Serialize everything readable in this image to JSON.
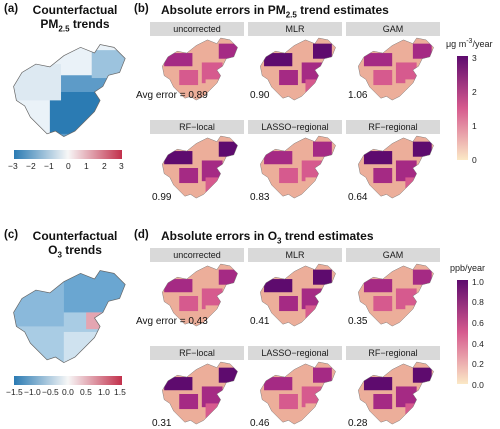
{
  "figure": {
    "pm25": {
      "counterfactual": {
        "label": "(a)",
        "title_line1": "Counterfactual",
        "title_line2_prefix": "PM",
        "title_line2_sub": "2.5",
        "title_line2_suffix": " trends",
        "colorbar_ticks": [
          "−3",
          "−2",
          "−1",
          "0",
          "1",
          "2",
          "3"
        ],
        "colorbar_range": [
          -3,
          3
        ]
      },
      "errors": {
        "label": "(b)",
        "title_prefix": "Absolute errors in PM",
        "title_sub": "2.5",
        "title_suffix": " trend estimates",
        "unit_prefix": "μg m",
        "unit_sup": "-3",
        "unit_suffix": "/year",
        "colorbar_ticks": [
          "3",
          "2",
          "1",
          "0"
        ],
        "colorbar_range": [
          0,
          3
        ],
        "avg_error_prefix": "Avg error = ",
        "methods": [
          {
            "name": "uncorrected",
            "avg_error": "0.89"
          },
          {
            "name": "MLR",
            "avg_error": "0.90"
          },
          {
            "name": "GAM",
            "avg_error": "1.06"
          },
          {
            "name": "RF−local",
            "avg_error": "0.99"
          },
          {
            "name": "LASSO−regional",
            "avg_error": "0.83"
          },
          {
            "name": "RF−regional",
            "avg_error": "0.64"
          }
        ]
      }
    },
    "o3": {
      "counterfactual": {
        "label": "(c)",
        "title_line1": "Counterfactual",
        "title_line2_prefix": "O",
        "title_line2_sub": "3",
        "title_line2_suffix": " trends",
        "colorbar_ticks": [
          "−1.5",
          "−1.0",
          "−0.5",
          "0.0",
          "0.5",
          "1.0",
          "1.5"
        ],
        "colorbar_range": [
          -1.5,
          1.5
        ]
      },
      "errors": {
        "label": "(d)",
        "title_prefix": "Absolute errors in O",
        "title_sub": "3",
        "title_suffix": " trend estimates",
        "unit": "ppb/year",
        "colorbar_ticks": [
          "1.0",
          "0.8",
          "0.6",
          "0.4",
          "0.2",
          "0.0"
        ],
        "colorbar_range": [
          0,
          1
        ],
        "avg_error_prefix": "Avg error = ",
        "methods": [
          {
            "name": "uncorrected",
            "avg_error": "0.43"
          },
          {
            "name": "MLR",
            "avg_error": "0.41"
          },
          {
            "name": "GAM",
            "avg_error": "0.35"
          },
          {
            "name": "RF−local",
            "avg_error": "0.31"
          },
          {
            "name": "LASSO−regional",
            "avg_error": "0.46"
          },
          {
            "name": "RF−regional",
            "avg_error": "0.28"
          }
        ]
      }
    },
    "colors": {
      "diverging_low": "#2b7bb3",
      "diverging_mid": "#f7f7f7",
      "diverging_high": "#c2304b",
      "sequential_low": "#fbe9c6",
      "sequential_mid": "#d65a8e",
      "sequential_high": "#5e0b6e",
      "strip": "#d9d9d9"
    }
  }
}
